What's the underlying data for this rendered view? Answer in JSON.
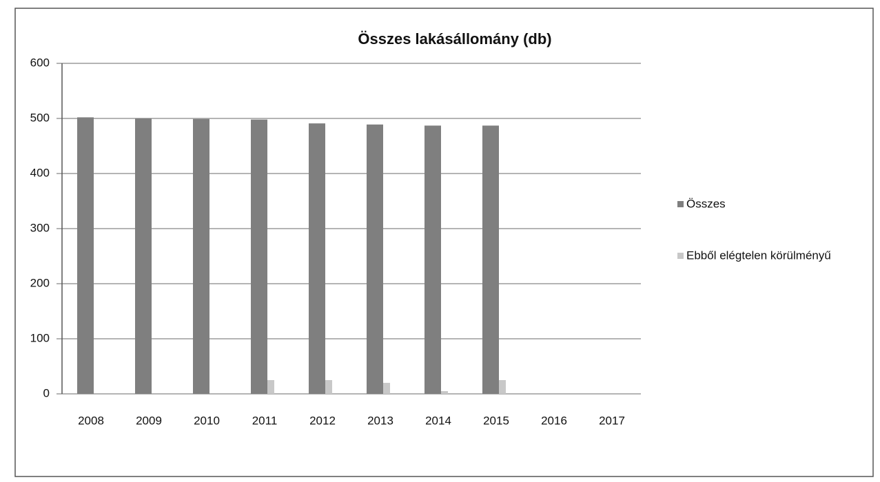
{
  "chart_data": {
    "type": "bar",
    "title": "Összes lakásállomány (db)",
    "categories": [
      "2008",
      "2009",
      "2010",
      "2011",
      "2012",
      "2013",
      "2014",
      "2015",
      "2016",
      "2017"
    ],
    "series": [
      {
        "name": "Összes",
        "color": "#7f7f7f",
        "values": [
          502,
          500,
          499,
          498,
          491,
          489,
          487,
          487,
          null,
          null
        ]
      },
      {
        "name": "Ebből elégtelen körülményű",
        "color": "#c8c8c8",
        "values": [
          0,
          0,
          0,
          25,
          25,
          20,
          5,
          25,
          null,
          null
        ]
      }
    ],
    "ylim": [
      0,
      600
    ],
    "yticks": [
      0,
      100,
      200,
      300,
      400,
      500,
      600
    ],
    "grid": true,
    "legend": "right"
  }
}
